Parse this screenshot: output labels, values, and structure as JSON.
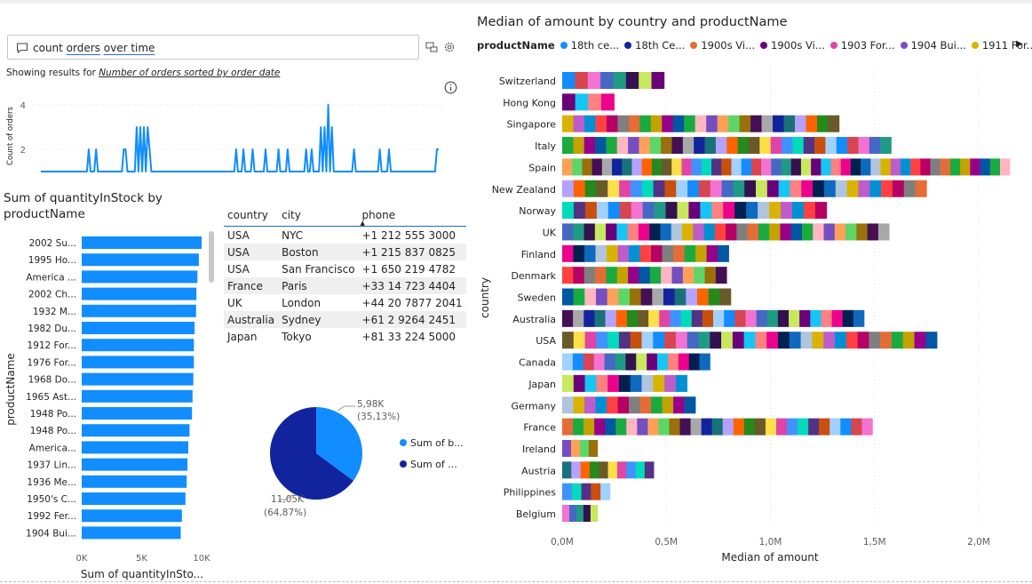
{
  "qa": {
    "query_parts": [
      "count ",
      "orders",
      " ",
      "over time"
    ],
    "showing_prefix": "Showing results for ",
    "showing_link": "Number of orders sorted by order date"
  },
  "icons": {
    "chat": "chat-icon",
    "convert": "convert-icon",
    "settings": "gear-icon",
    "info": "info-icon"
  },
  "line_chart": {
    "ylabel": "Count of orders",
    "yticks": [
      "4",
      "2"
    ]
  },
  "table": {
    "headers": [
      "country",
      "city",
      "phone"
    ],
    "rows": [
      [
        "USA",
        "NYC",
        "+1 212 555 3000"
      ],
      [
        "USA",
        "Boston",
        "+1 215 837 0825"
      ],
      [
        "USA",
        "San Francisco",
        "+1 650 219 4782"
      ],
      [
        "France",
        "Paris",
        "+33 14 723 4404"
      ],
      [
        "UK",
        "London",
        "+44 20 7877 2041"
      ],
      [
        "Australia",
        "Sydney",
        "+61 2 9264 2451"
      ],
      [
        "Japan",
        "Tokyo",
        "+81 33 224 5000"
      ]
    ]
  },
  "pie": {
    "legend": [
      "Sum of b...",
      "Sum of ..."
    ],
    "labels": [
      [
        "5,98K",
        "(35,13%)"
      ],
      [
        "11,05K",
        "(64,87%)"
      ]
    ]
  },
  "right_legend": {
    "label": "productName",
    "items": [
      {
        "name": "18th ce...",
        "color": "#118dff"
      },
      {
        "name": "18th Ce...",
        "color": "#12239e"
      },
      {
        "name": "1900s Vi...",
        "color": "#e66c37"
      },
      {
        "name": "1900s Vi...",
        "color": "#6b007b"
      },
      {
        "name": "1903 For...",
        "color": "#e044a7"
      },
      {
        "name": "1904 Bui...",
        "color": "#744ec2"
      },
      {
        "name": "1911 For...",
        "color": "#d9b300"
      }
    ]
  },
  "chart_data": [
    {
      "type": "line",
      "title": "",
      "ylabel": "Count of orders",
      "ylim": [
        0.5,
        4.5
      ],
      "yticks": [
        2,
        4
      ],
      "values": [
        1,
        1,
        1,
        1,
        1,
        1,
        1,
        1,
        1,
        1,
        1,
        1,
        1,
        1,
        1,
        1,
        1,
        1,
        1,
        1,
        1,
        1,
        1,
        1,
        1,
        1,
        2,
        1,
        1,
        1,
        2,
        1,
        1,
        1,
        1,
        1,
        1,
        1,
        1,
        1,
        1,
        1,
        1,
        1,
        1,
        2,
        2,
        1,
        1,
        1,
        1,
        1,
        3,
        1,
        3,
        1,
        3,
        1,
        3,
        2,
        1,
        1,
        1,
        1,
        1,
        1,
        1,
        1,
        1,
        1,
        1,
        1,
        1,
        1,
        1,
        1,
        1,
        1,
        1,
        1,
        1,
        1,
        1,
        1,
        1,
        1,
        1,
        1,
        1,
        1,
        1,
        1,
        1,
        1,
        1,
        1,
        1,
        1,
        1,
        1,
        1,
        1,
        1,
        1,
        1,
        1,
        2,
        1,
        1,
        1,
        2,
        1,
        1,
        1,
        1,
        2,
        1,
        1,
        1,
        1,
        1,
        1,
        2,
        1,
        1,
        1,
        1,
        1,
        1,
        2,
        1,
        1,
        1,
        1,
        2,
        1,
        1,
        1,
        1,
        1,
        1,
        1,
        1,
        1,
        2,
        1,
        1,
        2,
        1,
        1,
        1,
        1,
        3,
        1,
        3,
        1,
        4,
        1,
        3,
        1,
        1,
        1,
        1,
        1,
        1,
        1,
        1,
        1,
        1,
        1,
        2,
        1,
        1,
        1,
        1,
        1,
        1,
        1,
        1,
        1,
        1,
        1,
        1,
        1,
        2,
        1,
        1,
        1,
        1,
        2,
        1,
        1,
        1,
        1,
        1,
        1,
        1,
        1,
        1,
        1,
        1,
        1,
        1,
        1,
        1,
        1,
        1,
        1,
        1,
        1,
        1,
        1,
        1,
        1,
        1,
        2,
        2
      ]
    },
    {
      "type": "bar",
      "title": "Sum of quantityInStock by productName",
      "xlabel": "Sum of quantityInSto...",
      "ylabel": "productName",
      "xlim": [
        0,
        10000
      ],
      "xticks": [
        "0K",
        "5K",
        "10K"
      ],
      "categories": [
        "2002 Su...",
        "1995 Ho...",
        "America ...",
        "2002 Ch...",
        "1932 M...",
        "1982 Du...",
        "1912 For...",
        "1976 For...",
        "1968 Do...",
        "1965 Ast...",
        "1948 Po...",
        "1948 Po...",
        "America...",
        "1937 Lin...",
        "1936 Me...",
        "1950's C...",
        "1992 Fer...",
        "1904 Bui..."
      ],
      "values": [
        9997,
        9772,
        9653,
        9574,
        9542,
        9412,
        9354,
        9352,
        9310,
        9241,
        9200,
        8990,
        8890,
        8825,
        8752,
        8654,
        8357,
        8258
      ]
    },
    {
      "type": "pie",
      "values": [
        5980,
        11050
      ],
      "colors": [
        "#118dff",
        "#12239e"
      ],
      "series": [
        {
          "name": "Sum of b..."
        },
        {
          "name": "Sum of ..."
        }
      ]
    },
    {
      "type": "bar",
      "title": "Median of amount by country and productName",
      "xlabel": "Median of amount",
      "ylabel": "country",
      "xlim": [
        0,
        2200000
      ],
      "xticks": [
        "0,0M",
        "0,5M",
        "1,0M",
        "1,5M",
        "2,0M"
      ],
      "categories": [
        "Switzerland",
        "Hong Kong",
        "Singapore",
        "Italy",
        "Spain",
        "New Zealand",
        "Norway",
        "UK",
        "Finland",
        "Denmark",
        "Sweden",
        "Australia",
        "USA",
        "Canada",
        "Japan",
        "Germany",
        "France",
        "Ireland",
        "Austria",
        "Philippines",
        "Belgium"
      ],
      "values": [
        490000,
        250000,
        1330000,
        1580000,
        2150000,
        1750000,
        1270000,
        1570000,
        800000,
        790000,
        810000,
        1450000,
        1800000,
        710000,
        600000,
        640000,
        1490000,
        170000,
        440000,
        230000,
        170000
      ],
      "segments": [
        8,
        4,
        25,
        30,
        45,
        32,
        23,
        30,
        15,
        15,
        15,
        28,
        33,
        14,
        11,
        12,
        29,
        4,
        10,
        5,
        5
      ],
      "palette": [
        "#118dff",
        "#12239e",
        "#e66c37",
        "#6b007b",
        "#e044a7",
        "#744ec2",
        "#d9b300",
        "#d64550",
        "#197278",
        "#1aab40",
        "#15c6f4",
        "#4092ff",
        "#ffa058",
        "#be5dc9",
        "#f472d0",
        "#b5a1ff",
        "#c4a200",
        "#ff8080",
        "#00dbbc",
        "#5bd667",
        "#0091d5",
        "#4668c5",
        "#ff6300",
        "#99008a",
        "#ec008c",
        "#533285",
        "#99700a",
        "#ff4141",
        "#1f9a85",
        "#25891c",
        "#0057a2",
        "#002050",
        "#c94f0f",
        "#450f54",
        "#b60064",
        "#34124f",
        "#6a5a29",
        "#1aab40",
        "#0d6abf",
        "#a0d1ff",
        "#a8a8a8",
        "#7f7f7f",
        "#c8e85f",
        "#fde047",
        "#ffb6c1",
        "#b0c4de"
      ]
    }
  ]
}
